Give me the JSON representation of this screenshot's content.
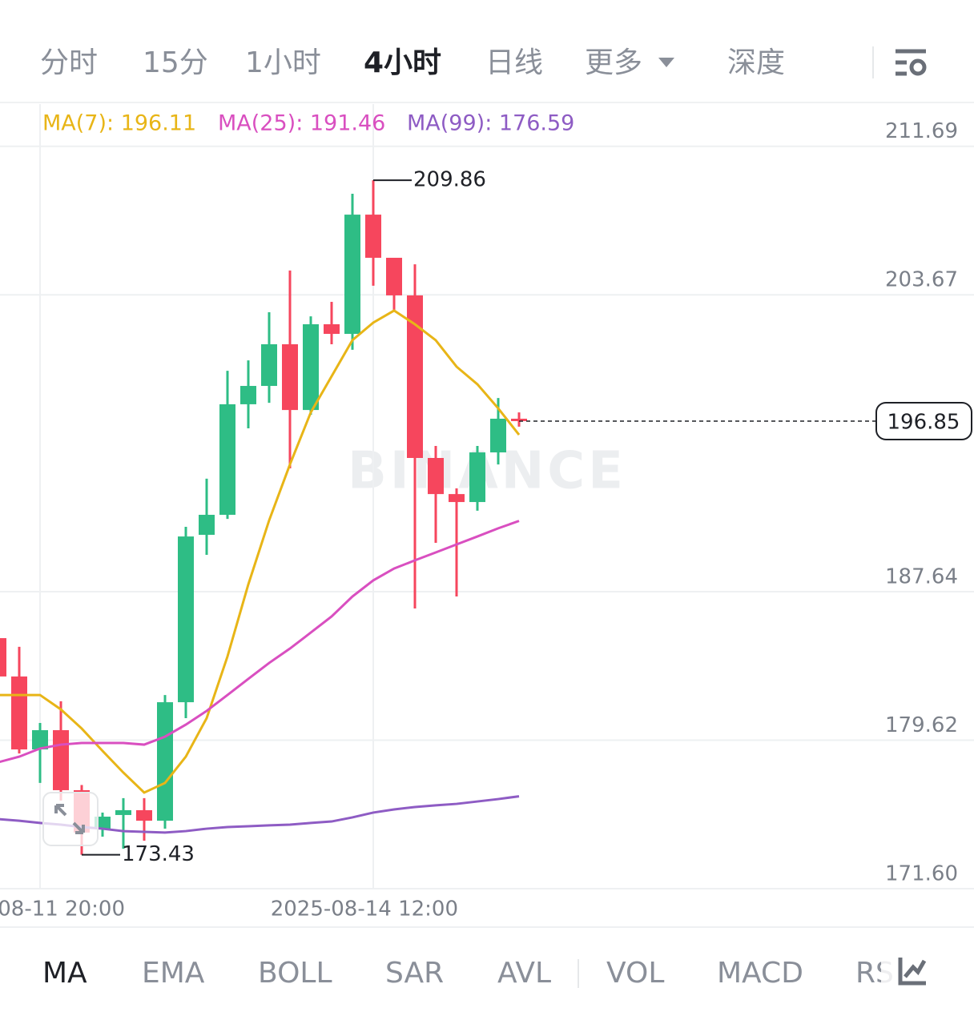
{
  "tabs": [
    "分时",
    "15分",
    "1小时",
    "4小时",
    "日线",
    "更多",
    "深度"
  ],
  "active_tab": 3,
  "indicators": [
    "MA",
    "EMA",
    "BOLL",
    "SAR",
    "AVL",
    "VOL",
    "MACD",
    "RS"
  ],
  "active_indicator": 0,
  "chart_data": {
    "type": "candlestick",
    "watermark": "BINANCE",
    "categories": [
      null,
      null,
      "-08-11 20:00",
      null,
      null,
      null,
      null,
      null,
      null,
      null,
      null,
      null,
      null,
      null,
      null,
      null,
      null,
      null,
      "2025-08-14 12:00",
      null,
      null,
      null,
      null,
      null,
      null,
      null
    ],
    "open": [
      185.13,
      183.06,
      179.12,
      180.16,
      176.92,
      174.84,
      175.58,
      175.84,
      175.27,
      181.67,
      190.71,
      191.79,
      197.76,
      198.75,
      201.0,
      197.45,
      202.08,
      201.56,
      208.0,
      205.67,
      203.64,
      194.86,
      192.91,
      192.48,
      195.16,
      196.98
    ],
    "high": [
      186.73,
      184.66,
      180.55,
      181.72,
      177.2,
      175.71,
      176.49,
      176.49,
      182.06,
      191.14,
      193.74,
      199.57,
      200.13,
      202.73,
      204.98,
      202.51,
      203.29,
      209.13,
      209.86,
      205.67,
      205.32,
      195.51,
      193.22,
      195.51,
      198.1,
      197.32
    ],
    "low": [
      182.8,
      178.9,
      177.31,
      176.36,
      173.43,
      174.41,
      173.76,
      174.19,
      174.84,
      180.81,
      189.63,
      191.57,
      196.46,
      197.84,
      194.3,
      197.19,
      201.0,
      200.7,
      204.16,
      202.86,
      186.73,
      190.28,
      187.38,
      192.01,
      194.51,
      196.55
    ],
    "close": [
      183.06,
      179.12,
      180.16,
      176.92,
      174.63,
      175.49,
      175.84,
      175.27,
      181.67,
      190.62,
      191.79,
      197.76,
      198.75,
      201.0,
      197.45,
      202.08,
      201.56,
      208.0,
      205.67,
      203.64,
      194.86,
      192.91,
      192.48,
      195.16,
      196.98,
      196.85
    ],
    "up_color": "#2ebd85",
    "down_color": "#f6465d",
    "series": [
      {
        "name": "MA(7): 196.11",
        "color": "#e8b517",
        "values": [
          182.06,
          182.06,
          182.06,
          181.28,
          180.25,
          179.04,
          177.87,
          176.79,
          177.31,
          178.73,
          180.81,
          184.14,
          188.03,
          191.49,
          194.51,
          197.32,
          199.27,
          201.22,
          202.17,
          202.82,
          202.08,
          201.22,
          199.79,
          198.84,
          197.54,
          196.11
        ]
      },
      {
        "name": "MA(25): 191.46",
        "color": "#d94fc0",
        "values": [
          178.43,
          178.73,
          179.17,
          179.38,
          179.47,
          179.47,
          179.47,
          179.38,
          179.81,
          180.46,
          181.2,
          182.06,
          182.93,
          183.79,
          184.57,
          185.43,
          186.3,
          187.38,
          188.25,
          188.89,
          189.33,
          189.76,
          190.19,
          190.62,
          191.06,
          191.46
        ]
      },
      {
        "name": "MA(99): 176.59",
        "color": "#8e5cc4",
        "values": [
          175.36,
          175.27,
          175.15,
          175.06,
          174.93,
          174.84,
          174.71,
          174.67,
          174.63,
          174.71,
          174.84,
          174.93,
          174.97,
          175.02,
          175.06,
          175.15,
          175.23,
          175.45,
          175.71,
          175.88,
          176.01,
          176.1,
          176.18,
          176.31,
          176.44,
          176.59
        ]
      }
    ],
    "ylim": [
      171.6,
      213.97
    ],
    "yticks": [
      211.69,
      203.67,
      187.64,
      179.62,
      {
        "value": 171.6,
        "label": "171.60"
      }
    ],
    "grid": true
  }
}
